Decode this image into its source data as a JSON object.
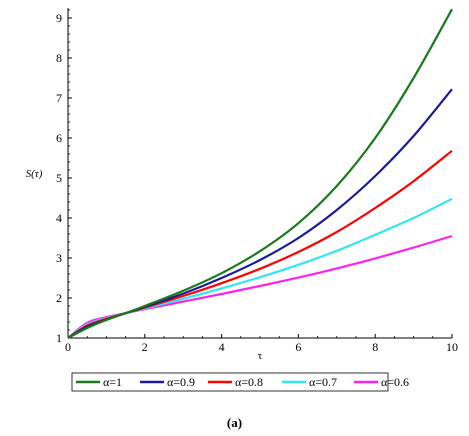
{
  "chart_data": {
    "type": "line",
    "xlabel": "τ",
    "ylabel": "S(τ)",
    "xlim": [
      0,
      10
    ],
    "ylim": [
      1,
      9.25
    ],
    "xticks": [
      0,
      2,
      4,
      6,
      8,
      10
    ],
    "yticks": [
      1,
      2,
      3,
      4,
      5,
      6,
      7,
      8,
      9
    ],
    "grid": false,
    "legend_position": "bottom",
    "x": [
      0,
      0.5,
      1,
      1.5,
      2,
      3,
      4,
      5,
      6,
      7,
      8,
      9,
      10
    ],
    "series": [
      {
        "name": "α=1",
        "color": "#1a7a1a",
        "values": [
          1.0,
          1.25,
          1.45,
          1.62,
          1.8,
          2.18,
          2.62,
          3.17,
          3.87,
          4.8,
          6.0,
          7.5,
          9.22
        ]
      },
      {
        "name": "α=0.9",
        "color": "#1a1a9a",
        "values": [
          1.0,
          1.28,
          1.46,
          1.62,
          1.78,
          2.11,
          2.5,
          2.95,
          3.5,
          4.2,
          5.05,
          6.05,
          7.22
        ]
      },
      {
        "name": "α=0.8",
        "color": "#ff0000",
        "values": [
          1.0,
          1.31,
          1.48,
          1.62,
          1.76,
          2.05,
          2.37,
          2.73,
          3.15,
          3.65,
          4.25,
          4.92,
          5.68
        ]
      },
      {
        "name": "α=0.7",
        "color": "#33e6ee",
        "values": [
          1.0,
          1.34,
          1.5,
          1.62,
          1.74,
          1.98,
          2.24,
          2.52,
          2.83,
          3.18,
          3.58,
          4.0,
          4.48
        ]
      },
      {
        "name": "α=0.6",
        "color": "#ff22ee",
        "values": [
          1.0,
          1.38,
          1.52,
          1.62,
          1.72,
          1.91,
          2.1,
          2.3,
          2.51,
          2.74,
          2.99,
          3.26,
          3.55
        ]
      }
    ]
  },
  "caption": "(a)"
}
